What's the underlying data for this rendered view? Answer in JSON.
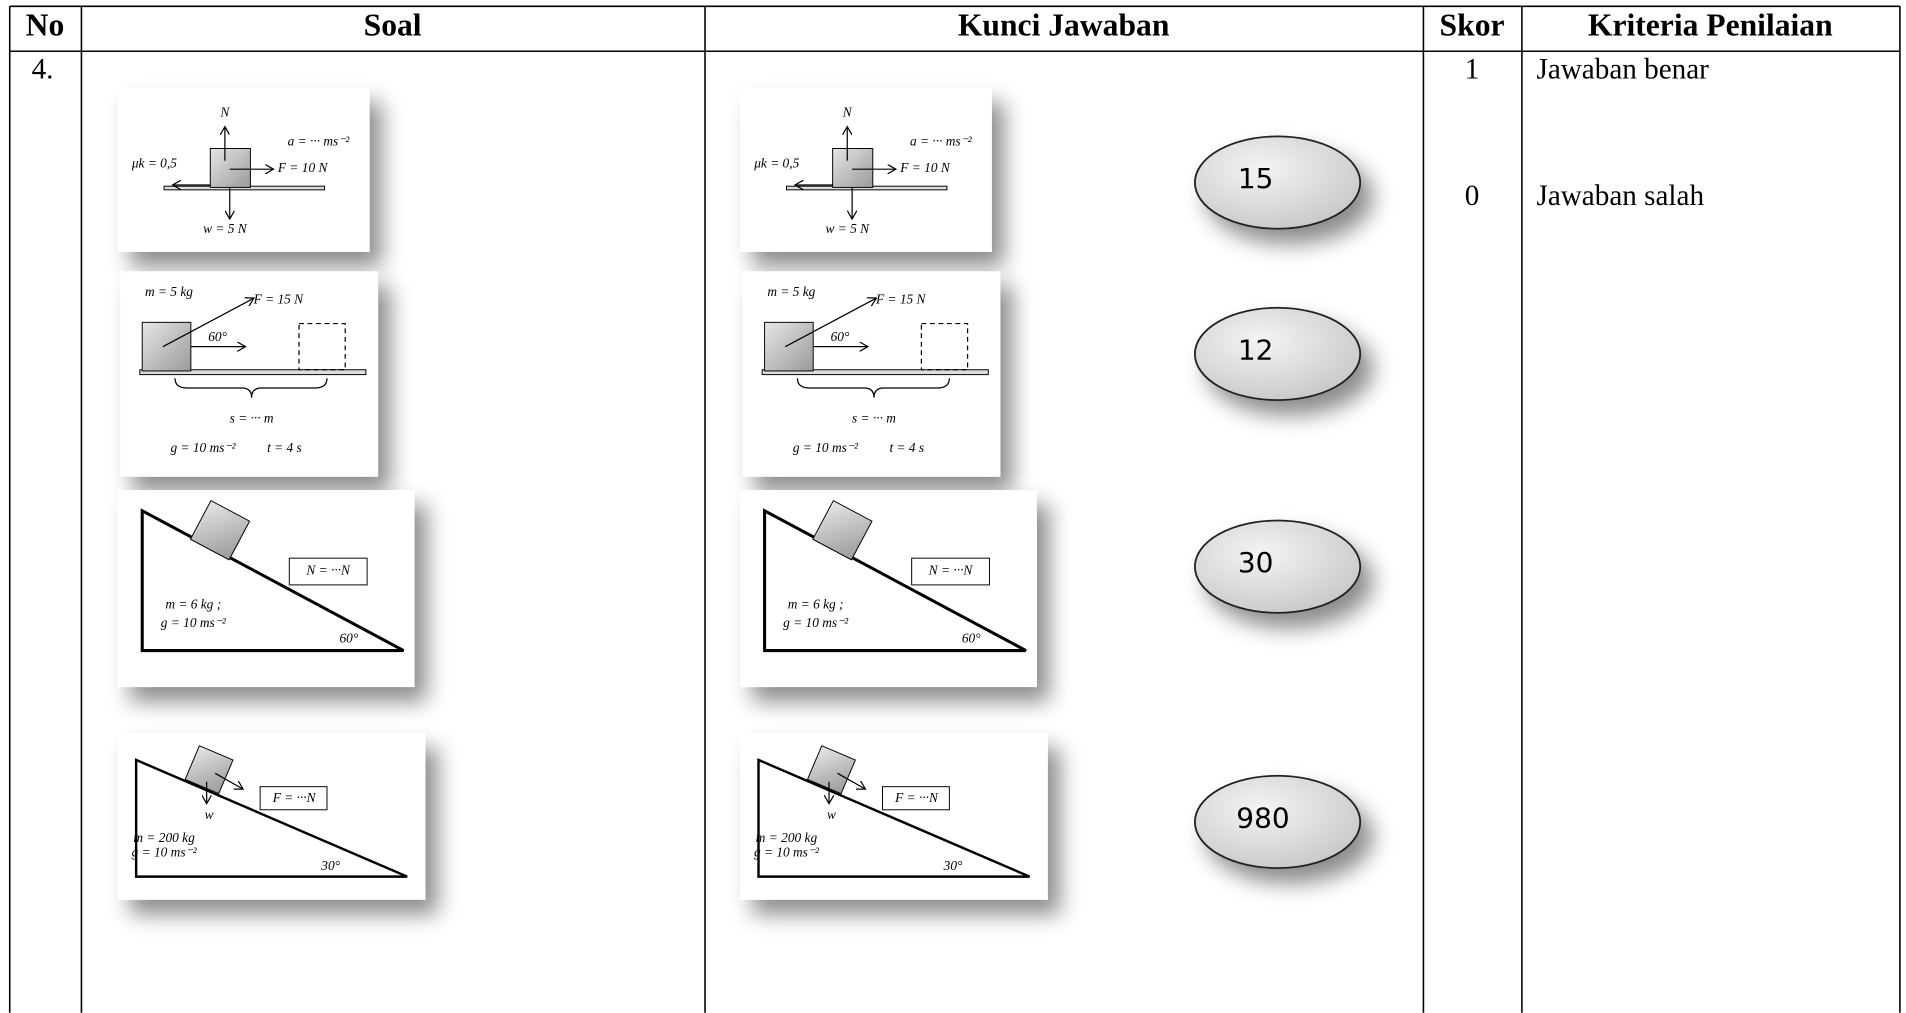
{
  "header": {
    "columns": [
      "No",
      "Soal",
      "Kunci Jawaban",
      "Skor",
      "Kriteria Penilaian"
    ]
  },
  "row": {
    "no": "4.",
    "soal": {
      "diagrams": [
        {
          "labels": [
            "N",
            "a = ··· ms⁻²",
            "μk = 0,5",
            "F = 10 N",
            "w = 5 N"
          ]
        },
        {
          "labels": [
            "m = 5 kg",
            "F = 15 N",
            "60°",
            "s = ··· m",
            "g = 10 ms⁻²",
            "t = 4 s"
          ]
        },
        {
          "labels": [
            "N = ···N",
            "m = 6 kg ;",
            "g =  10 ms⁻²",
            "60°"
          ]
        },
        {
          "labels": [
            "F = ···N",
            "w",
            "m = 200 kg",
            "g = 10 ms⁻²",
            "30°"
          ]
        }
      ]
    },
    "kunci": {
      "answers": [
        15,
        12,
        30,
        980
      ]
    },
    "skor": [
      1,
      0
    ],
    "kriteria": [
      "Jawaban benar",
      "Jawaban salah"
    ]
  }
}
